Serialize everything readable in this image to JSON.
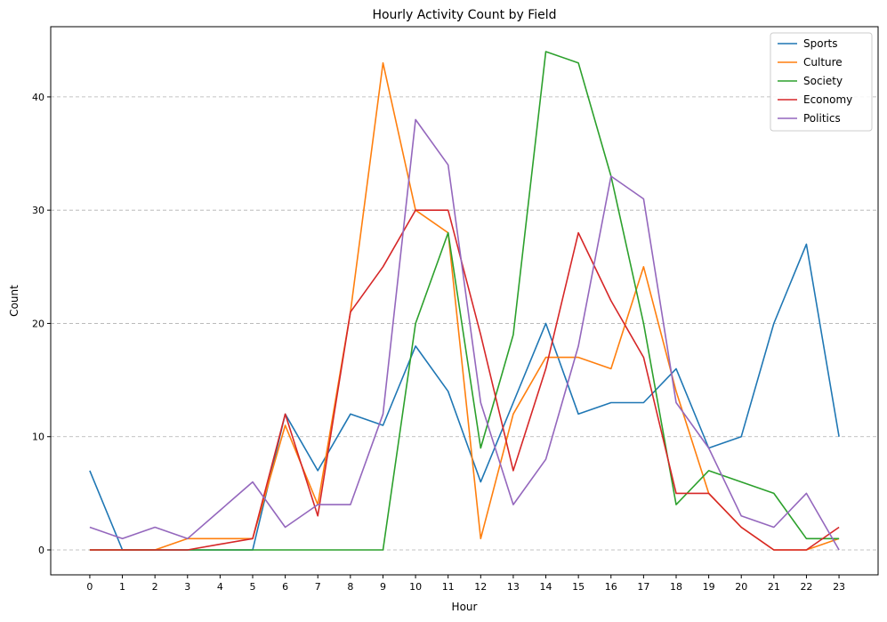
{
  "chart_data": {
    "type": "line",
    "title": "Hourly Activity Count by Field",
    "xlabel": "Hour",
    "ylabel": "Count",
    "x": [
      0,
      1,
      2,
      3,
      4,
      5,
      6,
      7,
      8,
      9,
      10,
      11,
      12,
      13,
      14,
      15,
      16,
      17,
      18,
      19,
      20,
      21,
      22,
      23
    ],
    "xlim": [
      -1.2,
      24.2
    ],
    "ylim": [
      -2.2,
      46.2
    ],
    "yticks": [
      0,
      10,
      20,
      30,
      40
    ],
    "grid": "y-dashed",
    "legend_position": "top-right",
    "series": [
      {
        "name": "Sports",
        "color": "#1f77b4",
        "values": [
          7,
          0,
          0,
          0,
          0,
          0,
          12,
          7,
          12,
          11,
          18,
          14,
          6,
          13,
          20,
          12,
          13,
          13,
          16,
          9,
          10,
          20,
          27,
          10
        ]
      },
      {
        "name": "Culture",
        "color": "#ff7f0e",
        "values": [
          0,
          0,
          0,
          1,
          1,
          1,
          11,
          4,
          21,
          43,
          30,
          28,
          1,
          12,
          17,
          17,
          16,
          25,
          14,
          5,
          2,
          0,
          0,
          1
        ]
      },
      {
        "name": "Society",
        "color": "#2ca02c",
        "values": [
          0,
          0,
          0,
          0,
          0,
          0,
          0,
          0,
          0,
          0,
          20,
          28,
          9,
          19,
          44,
          43,
          33,
          20,
          4,
          7,
          6,
          5,
          1,
          1
        ]
      },
      {
        "name": "Economy",
        "color": "#d62728",
        "values": [
          0,
          0,
          0,
          0,
          0.5,
          1,
          12,
          3,
          21,
          25,
          30,
          30,
          19,
          7,
          16,
          28,
          22,
          17,
          5,
          5,
          2,
          0,
          0,
          2
        ]
      },
      {
        "name": "Politics",
        "color": "#9467bd",
        "values": [
          2,
          1,
          2,
          1,
          3.5,
          6,
          2,
          4,
          4,
          12,
          38,
          34,
          13,
          4,
          8,
          18,
          33,
          31,
          13,
          9,
          3,
          2,
          5,
          0
        ]
      }
    ]
  }
}
